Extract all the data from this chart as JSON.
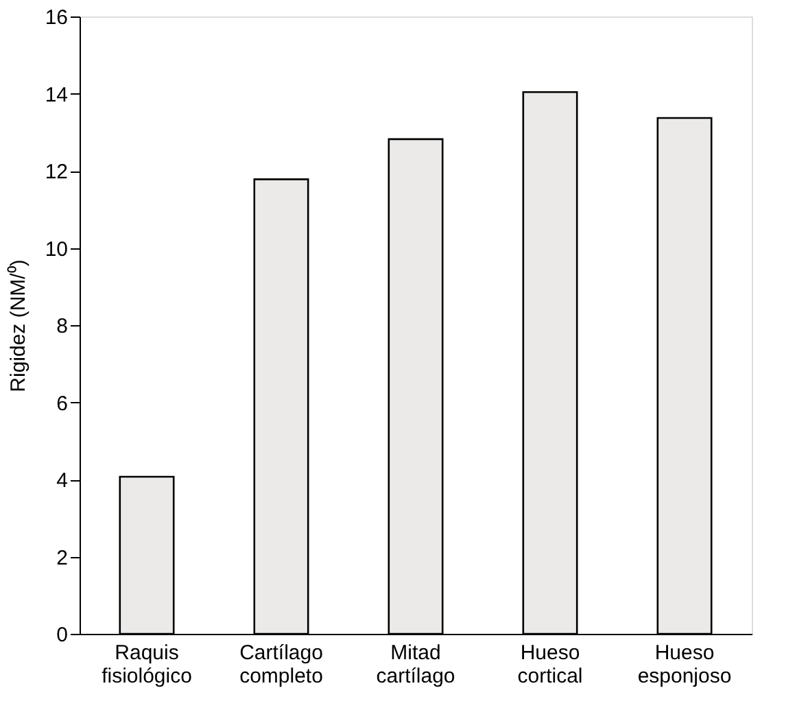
{
  "chart_data": {
    "type": "bar",
    "ylabel": "Rigidez (NM/⁰)",
    "categories": [
      "Raquis fisiológico",
      "Cartílago completo",
      "Mitad cartílago",
      "Hueso cortical",
      "Hueso esponjoso"
    ],
    "values": [
      4.07,
      11.78,
      12.82,
      14.04,
      13.37
    ],
    "color": "#ebeae8",
    "ylim": [
      0,
      16
    ],
    "yticks": [
      0,
      2,
      4,
      6,
      8,
      10,
      12,
      14,
      16
    ],
    "grid": false
  }
}
